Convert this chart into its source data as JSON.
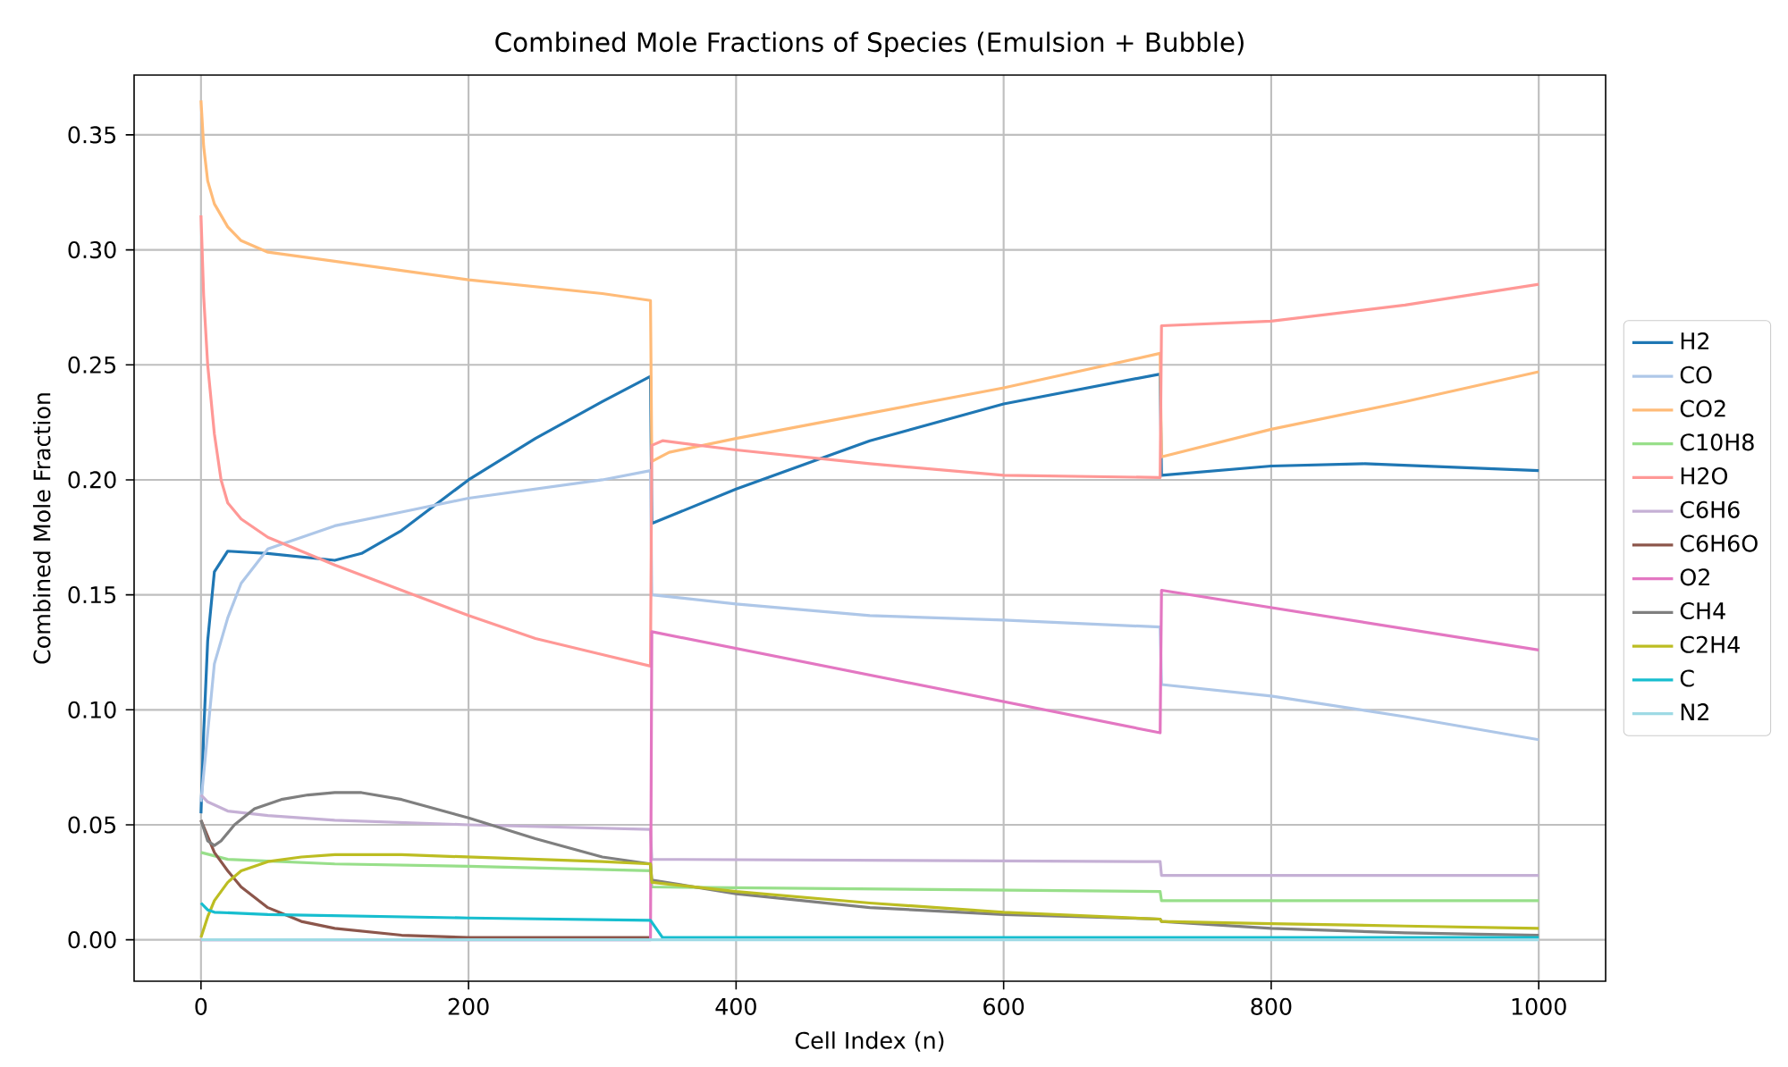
{
  "chart_data": {
    "type": "line",
    "title": "Combined Mole Fractions of Species (Emulsion + Bubble)",
    "xlabel": "Cell Index (n)",
    "ylabel": "Combined Mole Fraction",
    "xlim": [
      -50,
      1050
    ],
    "ylim": [
      -0.018,
      0.376
    ],
    "xticks": [
      0,
      200,
      400,
      600,
      800,
      1000
    ],
    "yticks": [
      {
        "value": 0,
        "label": "0.00"
      },
      {
        "value": 0.05,
        "label": "0.05"
      },
      {
        "value": 0.1,
        "label": "0.10"
      },
      {
        "value": 0.15,
        "label": "0.15"
      },
      {
        "value": 0.2,
        "label": "0.20"
      },
      {
        "value": 0.25,
        "label": "0.25"
      },
      {
        "value": 0.3,
        "label": "0.30"
      },
      {
        "value": 0.35,
        "label": "0.35"
      }
    ],
    "grid": true,
    "legend": "right",
    "marker": "none",
    "line_style": "solid",
    "series": [
      {
        "name": "H2",
        "color": "#1f77b4",
        "x": [
          0,
          2,
          5,
          10,
          20,
          50,
          100,
          120,
          150,
          200,
          250,
          300,
          336,
          337,
          400,
          500,
          600,
          717,
          718,
          800,
          870,
          1000
        ],
        "values": [
          0.055,
          0.09,
          0.13,
          0.16,
          0.169,
          0.168,
          0.165,
          0.168,
          0.178,
          0.2,
          0.218,
          0.234,
          0.245,
          0.181,
          0.196,
          0.217,
          0.233,
          0.246,
          0.202,
          0.206,
          0.207,
          0.204
        ]
      },
      {
        "name": "CO",
        "color": "#aec7e8",
        "x": [
          0,
          5,
          10,
          20,
          30,
          50,
          100,
          150,
          200,
          300,
          336,
          337,
          400,
          500,
          600,
          717,
          718,
          800,
          900,
          1000
        ],
        "values": [
          0.06,
          0.09,
          0.12,
          0.14,
          0.155,
          0.17,
          0.18,
          0.186,
          0.192,
          0.2,
          0.204,
          0.15,
          0.146,
          0.141,
          0.139,
          0.136,
          0.111,
          0.106,
          0.097,
          0.087
        ]
      },
      {
        "name": "CO2",
        "color": "#ffbb78",
        "x": [
          0,
          2,
          5,
          10,
          20,
          30,
          50,
          100,
          200,
          300,
          336,
          337,
          350,
          400,
          500,
          600,
          717,
          718,
          800,
          900,
          1000
        ],
        "values": [
          0.365,
          0.345,
          0.33,
          0.32,
          0.31,
          0.304,
          0.299,
          0.295,
          0.287,
          0.281,
          0.278,
          0.208,
          0.212,
          0.218,
          0.229,
          0.24,
          0.255,
          0.21,
          0.222,
          0.234,
          0.247
        ]
      },
      {
        "name": "C10H8",
        "color": "#98df8a",
        "x": [
          0,
          20,
          100,
          200,
          336,
          337,
          717,
          718,
          1000
        ],
        "values": [
          0.038,
          0.035,
          0.033,
          0.032,
          0.03,
          0.023,
          0.021,
          0.017,
          0.017
        ]
      },
      {
        "name": "H2O",
        "color": "#ff9896",
        "x": [
          0,
          2,
          5,
          10,
          15,
          20,
          30,
          50,
          100,
          150,
          200,
          250,
          300,
          336,
          337,
          345,
          400,
          500,
          600,
          717,
          718,
          800,
          900,
          1000
        ],
        "values": [
          0.315,
          0.28,
          0.25,
          0.22,
          0.2,
          0.19,
          0.183,
          0.175,
          0.163,
          0.152,
          0.141,
          0.131,
          0.124,
          0.119,
          0.215,
          0.217,
          0.213,
          0.207,
          0.202,
          0.201,
          0.267,
          0.269,
          0.276,
          0.285
        ]
      },
      {
        "name": "C6H6",
        "color": "#c5b0d5",
        "x": [
          0,
          5,
          20,
          50,
          100,
          200,
          336,
          337,
          717,
          718,
          1000
        ],
        "values": [
          0.063,
          0.06,
          0.056,
          0.054,
          0.052,
          0.05,
          0.048,
          0.035,
          0.034,
          0.028,
          0.028
        ]
      },
      {
        "name": "C6H6O",
        "color": "#8c564b",
        "x": [
          0,
          5,
          10,
          20,
          30,
          50,
          75,
          100,
          150,
          200,
          336
        ],
        "values": [
          0.052,
          0.045,
          0.038,
          0.03,
          0.023,
          0.014,
          0.008,
          0.005,
          0.002,
          0.001,
          0.001
        ]
      },
      {
        "name": "O2",
        "color": "#e377c2",
        "x": [
          0,
          336,
          337,
          717,
          718,
          1000
        ],
        "values": [
          0,
          0,
          0.134,
          0.09,
          0.152,
          0.126
        ]
      },
      {
        "name": "CH4",
        "color": "#7f7f7f",
        "x": [
          0,
          5,
          10,
          15,
          25,
          40,
          60,
          80,
          100,
          120,
          150,
          200,
          250,
          300,
          336,
          337,
          400,
          500,
          600,
          717,
          718,
          800,
          900,
          1000
        ],
        "values": [
          0.052,
          0.043,
          0.041,
          0.043,
          0.05,
          0.057,
          0.061,
          0.063,
          0.064,
          0.064,
          0.061,
          0.053,
          0.044,
          0.036,
          0.033,
          0.026,
          0.02,
          0.014,
          0.011,
          0.009,
          0.008,
          0.005,
          0.003,
          0.002
        ]
      },
      {
        "name": "C2H4",
        "color": "#bcbd22",
        "x": [
          0,
          5,
          10,
          20,
          30,
          50,
          75,
          100,
          150,
          200,
          300,
          336,
          337,
          400,
          500,
          600,
          717,
          718,
          800,
          900,
          1000
        ],
        "values": [
          0.001,
          0.01,
          0.017,
          0.025,
          0.03,
          0.034,
          0.036,
          0.037,
          0.037,
          0.036,
          0.034,
          0.033,
          0.025,
          0.021,
          0.016,
          0.012,
          0.009,
          0.008,
          0.007,
          0.006,
          0.005
        ]
      },
      {
        "name": "C",
        "color": "#17becf",
        "x": [
          0,
          5,
          10,
          50,
          200,
          336,
          345,
          1000
        ],
        "values": [
          0.016,
          0.013,
          0.012,
          0.011,
          0.0095,
          0.0085,
          0.001,
          0.001
        ]
      },
      {
        "name": "N2",
        "color": "#9edae5",
        "x": [
          0,
          1000
        ],
        "values": [
          0,
          0
        ]
      }
    ]
  }
}
